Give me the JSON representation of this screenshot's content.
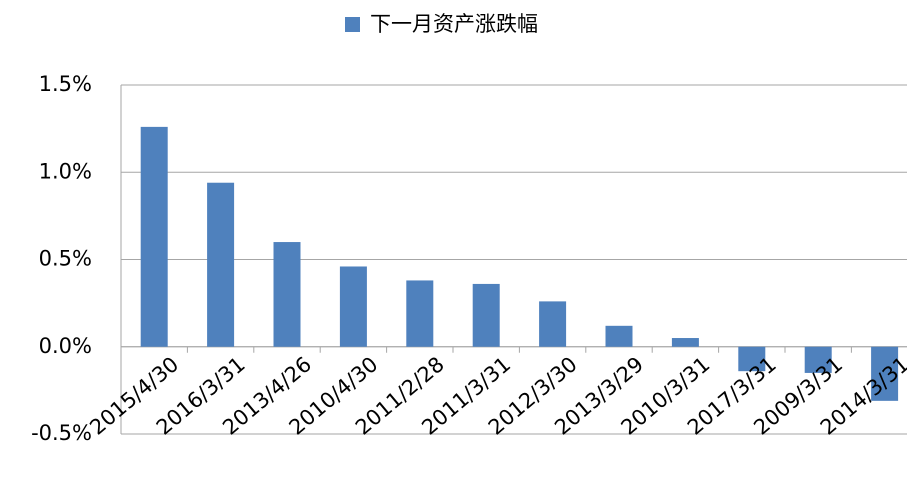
{
  "chart_data": {
    "type": "bar",
    "categories": [
      "2015/4/30",
      "2016/3/31",
      "2013/4/26",
      "2010/4/30",
      "2011/2/28",
      "2011/3/31",
      "2012/3/30",
      "2013/3/29",
      "2010/3/31",
      "2017/3/31",
      "2009/3/31",
      "2014/3/31"
    ],
    "series": [
      {
        "name": "下一月资产涨跌幅",
        "color": "#4f81bd",
        "values": [
          1.26,
          0.94,
          0.6,
          0.46,
          0.38,
          0.36,
          0.26,
          0.12,
          0.05,
          -0.14,
          -0.15,
          -0.31
        ]
      }
    ],
    "ylim": [
      -0.5,
      1.5
    ],
    "yticks": [
      {
        "value": -0.5,
        "label": "-0.5%"
      },
      {
        "value": 0.0,
        "label": "0.0%"
      },
      {
        "value": 0.5,
        "label": "0.5%"
      },
      {
        "value": 1.0,
        "label": "1.0%"
      },
      {
        "value": 1.5,
        "label": "1.5%"
      }
    ],
    "grid": true,
    "legend": "top"
  }
}
